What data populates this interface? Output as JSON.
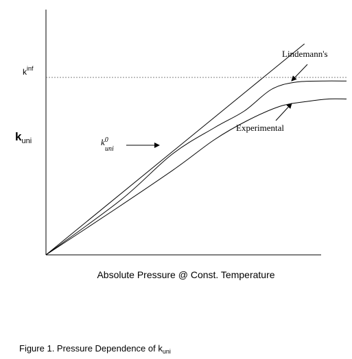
{
  "chart_data": {
    "type": "line",
    "xlabel": "Absolute Pressure @ Const. Temperature",
    "ylabel": {
      "main": "k",
      "sub": "uni"
    },
    "kinf_label": {
      "main": "k",
      "sup": "inf"
    },
    "caption": {
      "main": "Figure 1. Pressure Dependence of k",
      "sub": "uni"
    },
    "ticks": "none",
    "grid": false,
    "xlim": [
      0,
      10
    ],
    "ylim": [
      0,
      10
    ],
    "kinf_value": 7.4,
    "series": [
      {
        "name": "k0_uni",
        "label_main": "k",
        "label_sup": "0",
        "label_sub": "uni",
        "style": "solid",
        "points": [
          [
            0,
            0
          ],
          [
            8.6,
            8.8
          ]
        ]
      },
      {
        "name": "Lindemann's",
        "style": "solid",
        "points": [
          [
            0,
            0
          ],
          [
            2.5,
            2.3
          ],
          [
            4.2,
            4.2
          ],
          [
            5.6,
            5.3
          ],
          [
            6.6,
            6.0
          ],
          [
            7.5,
            6.9
          ],
          [
            8.3,
            7.2
          ],
          [
            9.2,
            7.25
          ],
          [
            10.0,
            7.25
          ]
        ]
      },
      {
        "name": "Experimental",
        "style": "solid",
        "points": [
          [
            0,
            0
          ],
          [
            2.3,
            1.9
          ],
          [
            4.3,
            3.6
          ],
          [
            5.6,
            4.8
          ],
          [
            6.7,
            5.6
          ],
          [
            7.8,
            6.2
          ],
          [
            8.7,
            6.4
          ],
          [
            9.4,
            6.5
          ],
          [
            10.0,
            6.5
          ]
        ]
      }
    ],
    "annotations": [
      {
        "text": "Lindemann's",
        "target_series": "Lindemann's"
      },
      {
        "text": "Experimental",
        "target_series": "Experimental"
      },
      {
        "text": "k0_uni",
        "target_series": "k0_uni"
      }
    ]
  }
}
